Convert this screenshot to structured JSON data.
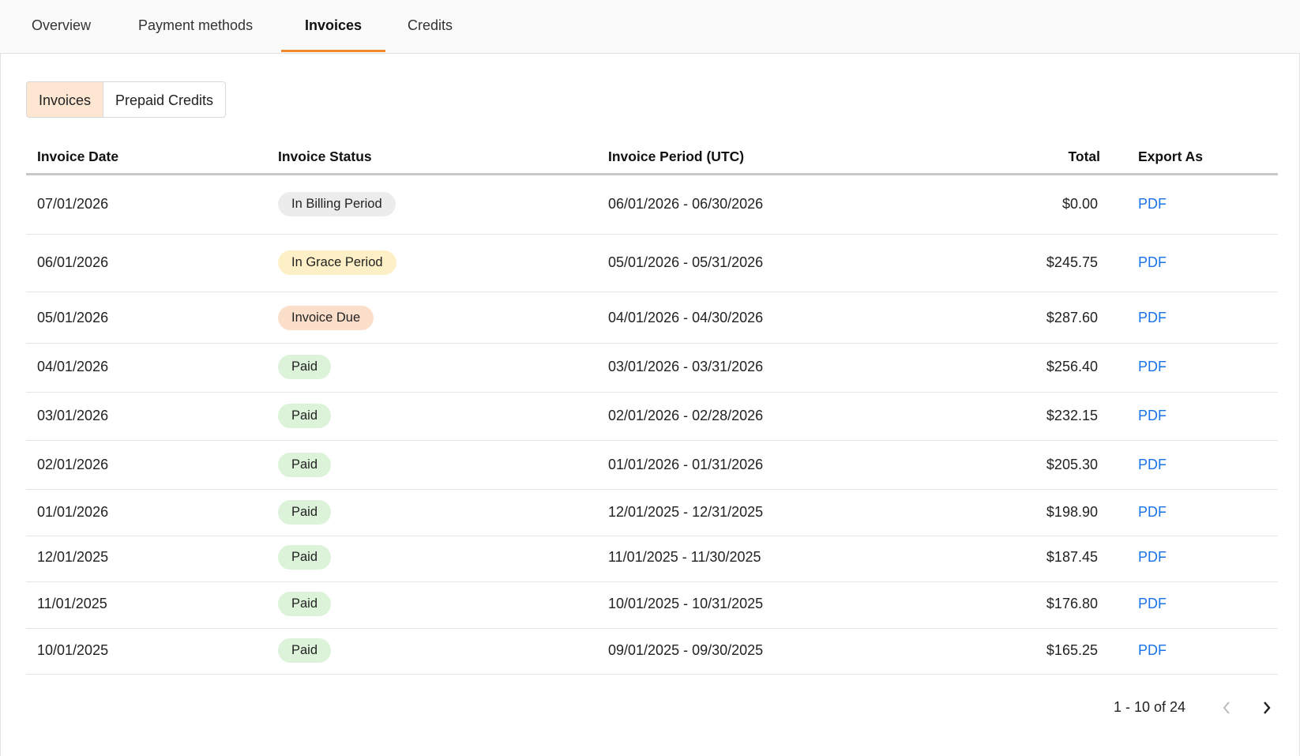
{
  "tabs": [
    "Overview",
    "Payment methods",
    "Invoices",
    "Credits"
  ],
  "active_tab": 2,
  "segments": [
    "Invoices",
    "Prepaid Credits"
  ],
  "active_segment": 0,
  "table": {
    "columns": [
      "Invoice Date",
      "Invoice Status",
      "Invoice Period (UTC)",
      "Total",
      "Export As"
    ],
    "rows": [
      {
        "date": "07/01/2026",
        "status": "In Billing Period",
        "status_color": "#ececec",
        "period": "06/01/2026 - 06/30/2026",
        "total": "$0.00",
        "export": "PDF"
      },
      {
        "date": "06/01/2026",
        "status": "In Grace Period",
        "status_color": "#fdf0c6",
        "period": "05/01/2026 - 05/31/2026",
        "total": "$245.75",
        "export": "PDF"
      },
      {
        "date": "05/01/2026",
        "status": "Invoice Due",
        "status_color": "#fcdfcb",
        "period": "04/01/2026 - 04/30/2026",
        "total": "$287.60",
        "export": "PDF"
      },
      {
        "date": "04/01/2026",
        "status": "Paid",
        "status_color": "#dcf3da",
        "period": "03/01/2026 - 03/31/2026",
        "total": "$256.40",
        "export": "PDF"
      },
      {
        "date": "03/01/2026",
        "status": "Paid",
        "status_color": "#dcf3da",
        "period": "02/01/2026 - 02/28/2026",
        "total": "$232.15",
        "export": "PDF"
      },
      {
        "date": "02/01/2026",
        "status": "Paid",
        "status_color": "#dcf3da",
        "period": "01/01/2026 - 01/31/2026",
        "total": "$205.30",
        "export": "PDF"
      },
      {
        "date": "01/01/2026",
        "status": "Paid",
        "status_color": "#dcf3da",
        "period": "12/01/2025 - 12/31/2025",
        "total": "$198.90",
        "export": "PDF"
      },
      {
        "date": "12/01/2025",
        "status": "Paid",
        "status_color": "#dcf3da",
        "period": "11/01/2025 - 11/30/2025",
        "total": "$187.45",
        "export": "PDF"
      },
      {
        "date": "11/01/2025",
        "status": "Paid",
        "status_color": "#dcf3da",
        "period": "10/01/2025 - 10/31/2025",
        "total": "$176.80",
        "export": "PDF"
      },
      {
        "date": "10/01/2025",
        "status": "Paid",
        "status_color": "#dcf3da",
        "period": "09/01/2025 - 09/30/2025",
        "total": "$165.25",
        "export": "PDF"
      }
    ]
  },
  "pagination": {
    "range": "1 - 10 of 24"
  }
}
